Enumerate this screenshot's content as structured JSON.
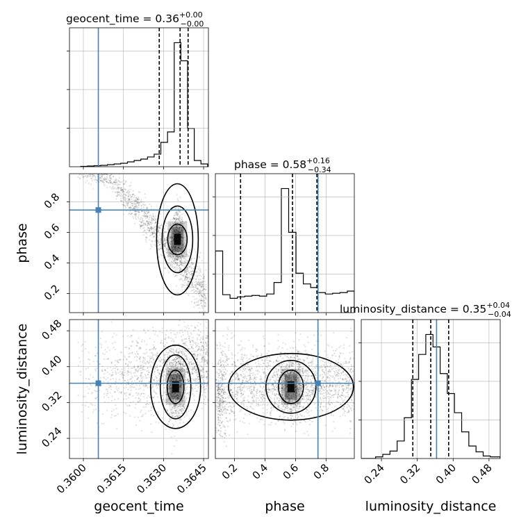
{
  "chart_data": {
    "type": "corner",
    "parameters": [
      "geocent_time",
      "phase",
      "luminosity_distance"
    ],
    "axis_labels": {
      "geocent_time": "geocent_time",
      "phase": "phase",
      "luminosity_distance": "luminosity_distance"
    },
    "titles": [
      {
        "param": "geocent_time",
        "text": "geocent_time = 0.36",
        "plus": "+0.00",
        "minus": "−0.00"
      },
      {
        "param": "phase",
        "text": "phase = 0.58",
        "plus": "+0.16",
        "minus": "−0.34"
      },
      {
        "param": "luminosity_distance",
        "text": "luminosity_distance = 0.35",
        "plus": "+0.04",
        "minus": "−0.04"
      }
    ],
    "ranges": {
      "geocent_time": [
        0.35948,
        0.36468
      ],
      "phase": [
        0.075,
        0.985
      ],
      "luminosity_distance": [
        0.195,
        0.505
      ]
    },
    "ticks": {
      "geocent_time": {
        "values": [
          0.36,
          0.3615,
          0.363,
          0.3645
        ],
        "labels": [
          "0.3600",
          "0.3615",
          "0.3630",
          "0.3645"
        ]
      },
      "phase": {
        "values": [
          0.2,
          0.4,
          0.6,
          0.8
        ],
        "labels": [
          "0.2",
          "0.4",
          "0.6",
          "0.8"
        ]
      },
      "luminosity_distance": {
        "values": [
          0.24,
          0.32,
          0.4,
          0.48
        ],
        "labels": [
          "0.24",
          "0.32",
          "0.40",
          "0.48"
        ]
      }
    },
    "truths": {
      "geocent_time": 0.36056,
      "phase": 0.747,
      "luminosity_distance": 0.363
    },
    "quantiles": {
      "geocent_time": [
        0.36284,
        0.36362,
        0.36392
      ],
      "phase": [
        0.24,
        0.58,
        0.74
      ],
      "luminosity_distance": [
        0.31,
        0.35,
        0.39
      ]
    },
    "histograms": {
      "geocent_time": {
        "edges": [
          0.3599,
          0.36015,
          0.3604,
          0.36065,
          0.3609,
          0.36115,
          0.3614,
          0.36165,
          0.3619,
          0.36215,
          0.3624,
          0.36265,
          0.3629,
          0.36315,
          0.3634,
          0.36365,
          0.3639,
          0.36415,
          0.3644,
          0.36465
        ],
        "counts": [
          0.5,
          1,
          1.5,
          2,
          3,
          4,
          5,
          7,
          9,
          11,
          14,
          18,
          35,
          50,
          178,
          152,
          55,
          9,
          4
        ]
      },
      "phase": {
        "edges": [
          0.075,
          0.123,
          0.171,
          0.219,
          0.267,
          0.315,
          0.363,
          0.411,
          0.459,
          0.507,
          0.555,
          0.603,
          0.651,
          0.699,
          0.747,
          0.795,
          0.843,
          0.891,
          0.939,
          0.985
        ],
        "counts": [
          86,
          25,
          20,
          22,
          23,
          24,
          23,
          26,
          42,
          173,
          112,
          55,
          40,
          35,
          28,
          26,
          27,
          28,
          30
        ]
      },
      "luminosity_distance": {
        "edges": [
          0.195,
          0.211,
          0.227,
          0.243,
          0.259,
          0.275,
          0.291,
          0.307,
          0.323,
          0.339,
          0.355,
          0.371,
          0.387,
          0.403,
          0.419,
          0.435,
          0.451,
          0.467,
          0.483,
          0.505
        ],
        "counts": [
          0,
          0,
          4,
          10,
          18,
          42,
          98,
          190,
          250,
          298,
          268,
          204,
          156,
          110,
          64,
          30,
          16,
          6,
          4
        ]
      }
    },
    "density_2d": [
      {
        "x": "geocent_time",
        "y": "phase",
        "peak": [
          0.36352,
          0.555
        ]
      },
      {
        "x": "geocent_time",
        "y": "luminosity_distance",
        "peak": [
          0.36345,
          0.355
        ]
      },
      {
        "x": "phase",
        "y": "luminosity_distance",
        "peak": [
          0.57,
          0.355
        ]
      }
    ],
    "colors": {
      "truth": "#4682b4",
      "hist": "#000000",
      "grid": "#b0b0b0"
    },
    "grid": true
  }
}
